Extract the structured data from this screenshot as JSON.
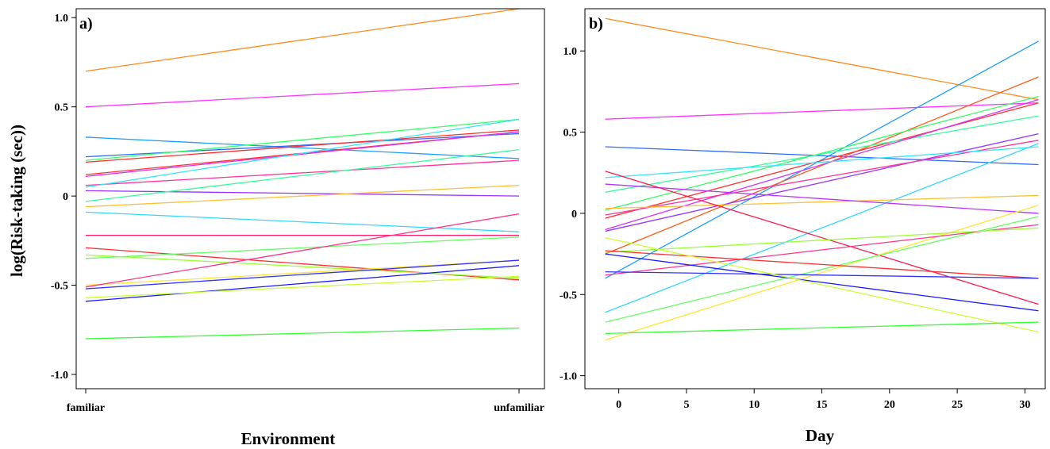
{
  "ylabel": "log(Risk-taking (sec))",
  "chart_data": [
    {
      "panel": "a)",
      "type": "line",
      "xlabel": "Environment",
      "categories": [
        "familiar",
        "unfamiliar"
      ],
      "ylim": [
        -1.08,
        1.05
      ],
      "yticks": [
        -1.0,
        -0.5,
        0,
        0.5,
        1.0
      ],
      "ytick_labels": [
        "-1.0",
        "-0.5",
        "0",
        "0.5",
        "1.0"
      ],
      "grid": false,
      "series": [
        {
          "color": "#ff8c1a",
          "values": [
            0.7,
            1.05
          ]
        },
        {
          "color": "#ff33ff",
          "values": [
            0.5,
            0.63
          ]
        },
        {
          "color": "#1a9fff",
          "values": [
            0.33,
            0.21
          ]
        },
        {
          "color": "#2e6bff",
          "values": [
            0.22,
            0.35
          ]
        },
        {
          "color": "#33ff66",
          "values": [
            0.2,
            0.43
          ]
        },
        {
          "color": "#ff2e2e",
          "values": [
            0.19,
            0.37
          ]
        },
        {
          "color": "#ff3333",
          "values": [
            0.12,
            0.36
          ]
        },
        {
          "color": "#d633ff",
          "values": [
            0.11,
            0.36
          ]
        },
        {
          "color": "#ff3399",
          "values": [
            0.06,
            0.2
          ]
        },
        {
          "color": "#33e6ff",
          "values": [
            0.05,
            0.43
          ]
        },
        {
          "color": "#9933ff",
          "values": [
            0.03,
            0.0
          ]
        },
        {
          "color": "#33ff99",
          "values": [
            -0.03,
            0.26
          ]
        },
        {
          "color": "#ffbf33",
          "values": [
            -0.06,
            0.06
          ]
        },
        {
          "color": "#33d6ff",
          "values": [
            -0.09,
            -0.2
          ]
        },
        {
          "color": "#ff1a66",
          "values": [
            -0.22,
            -0.22
          ]
        },
        {
          "color": "#ff2e2e",
          "values": [
            -0.29,
            -0.47
          ]
        },
        {
          "color": "#99ff33",
          "values": [
            -0.33,
            -0.46
          ]
        },
        {
          "color": "#66ff66",
          "values": [
            -0.35,
            -0.23
          ]
        },
        {
          "color": "#ffe633",
          "values": [
            -0.5,
            -0.36
          ]
        },
        {
          "color": "#ff3388",
          "values": [
            -0.51,
            -0.1
          ]
        },
        {
          "color": "#3333ff",
          "values": [
            -0.52,
            -0.36
          ]
        },
        {
          "color": "#1a1aff",
          "values": [
            -0.59,
            -0.39
          ]
        },
        {
          "color": "#ccff33",
          "values": [
            -0.57,
            -0.45
          ]
        },
        {
          "color": "#33ff33",
          "values": [
            -0.8,
            -0.74
          ]
        }
      ]
    },
    {
      "panel": "b)",
      "type": "line",
      "xlabel": "Day",
      "xlim": [
        -2.5,
        31.5
      ],
      "xticks": [
        0,
        5,
        10,
        15,
        20,
        25,
        30
      ],
      "xtick_labels": [
        "0",
        "5",
        "10",
        "15",
        "20",
        "25",
        "30"
      ],
      "ylim": [
        -1.08,
        1.26
      ],
      "yticks": [
        -1.0,
        -0.5,
        0,
        0.5,
        1.0
      ],
      "ytick_labels": [
        "-1.0",
        "-0.5",
        "0",
        "0.5",
        "1.0"
      ],
      "grid": false,
      "x": [
        -1,
        31
      ],
      "series": [
        {
          "color": "#ff8c1a",
          "values": [
            1.2,
            0.7
          ]
        },
        {
          "color": "#ff33ff",
          "values": [
            0.58,
            0.68
          ]
        },
        {
          "color": "#1a9fff",
          "values": [
            -0.4,
            1.06
          ]
        },
        {
          "color": "#2e6bff",
          "values": [
            0.41,
            0.3
          ]
        },
        {
          "color": "#ff5a1a",
          "values": [
            -0.25,
            0.84
          ]
        },
        {
          "color": "#33ff66",
          "values": [
            0.02,
            0.72
          ]
        },
        {
          "color": "#ff3333",
          "values": [
            -0.03,
            0.68
          ]
        },
        {
          "color": "#33ff99",
          "values": [
            0.13,
            0.6
          ]
        },
        {
          "color": "#d633ff",
          "values": [
            -0.1,
            0.7
          ]
        },
        {
          "color": "#9933ff",
          "values": [
            -0.11,
            0.49
          ]
        },
        {
          "color": "#ff3399",
          "values": [
            -0.01,
            0.45
          ]
        },
        {
          "color": "#33e6ff",
          "values": [
            0.22,
            0.41
          ]
        },
        {
          "color": "#33d6ff",
          "values": [
            -0.61,
            0.43
          ]
        },
        {
          "color": "#ffbf33",
          "values": [
            0.03,
            0.11
          ]
        },
        {
          "color": "#b833ff",
          "values": [
            0.18,
            0.0
          ]
        },
        {
          "color": "#ff1a4d",
          "values": [
            0.26,
            -0.56
          ]
        },
        {
          "color": "#ffe633",
          "values": [
            -0.78,
            0.05
          ]
        },
        {
          "color": "#66ff66",
          "values": [
            -0.67,
            -0.02
          ]
        },
        {
          "color": "#ff3388",
          "values": [
            -0.38,
            -0.07
          ]
        },
        {
          "color": "#99ff33",
          "values": [
            -0.24,
            -0.09
          ]
        },
        {
          "color": "#ff2e2e",
          "values": [
            -0.23,
            -0.4
          ]
        },
        {
          "color": "#3333ff",
          "values": [
            -0.36,
            -0.4
          ]
        },
        {
          "color": "#1a1aff",
          "values": [
            -0.25,
            -0.6
          ]
        },
        {
          "color": "#ccff33",
          "values": [
            -0.15,
            -0.73
          ]
        },
        {
          "color": "#33ff33",
          "values": [
            -0.74,
            -0.67
          ]
        }
      ]
    }
  ]
}
